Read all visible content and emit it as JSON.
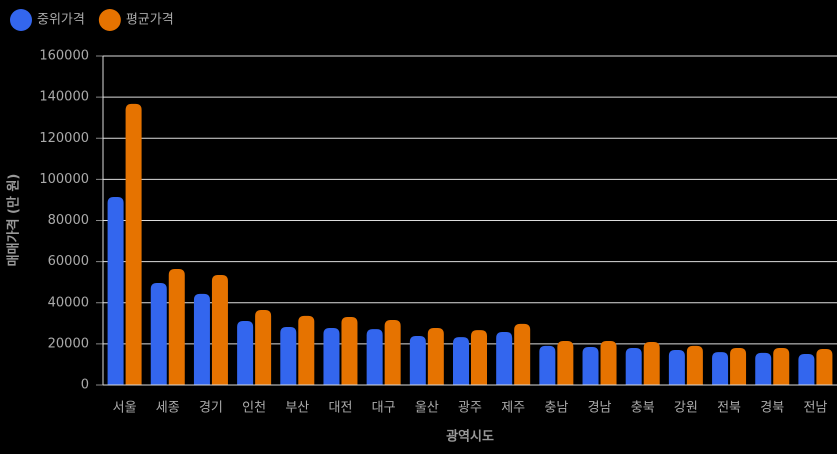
{
  "chart_data": {
    "type": "bar",
    "x_label": "광역시도",
    "y_label": "매매가격 (만 원)",
    "categories": [
      "서울",
      "세종",
      "경기",
      "인천",
      "부산",
      "대전",
      "대구",
      "울산",
      "광주",
      "제주",
      "충남",
      "경남",
      "충북",
      "강원",
      "전북",
      "경북",
      "전남"
    ],
    "series": [
      {
        "name": "중위가격",
        "color": "#3366ee",
        "values": [
          91400,
          49600,
          44300,
          31100,
          28200,
          27700,
          27200,
          23800,
          23300,
          25800,
          19000,
          18500,
          18000,
          17000,
          16000,
          15600,
          15100
        ]
      },
      {
        "name": "평균가격",
        "color": "#e67300",
        "values": [
          136700,
          56400,
          53500,
          36500,
          33600,
          33100,
          31600,
          27700,
          26700,
          29700,
          21400,
          21400,
          20900,
          19000,
          18000,
          18000,
          17500
        ]
      }
    ],
    "ylim": [
      0,
      160000
    ],
    "yticks": [
      0,
      20000,
      40000,
      60000,
      80000,
      100000,
      120000,
      140000,
      160000
    ],
    "grid": true,
    "legend": "top-left"
  }
}
